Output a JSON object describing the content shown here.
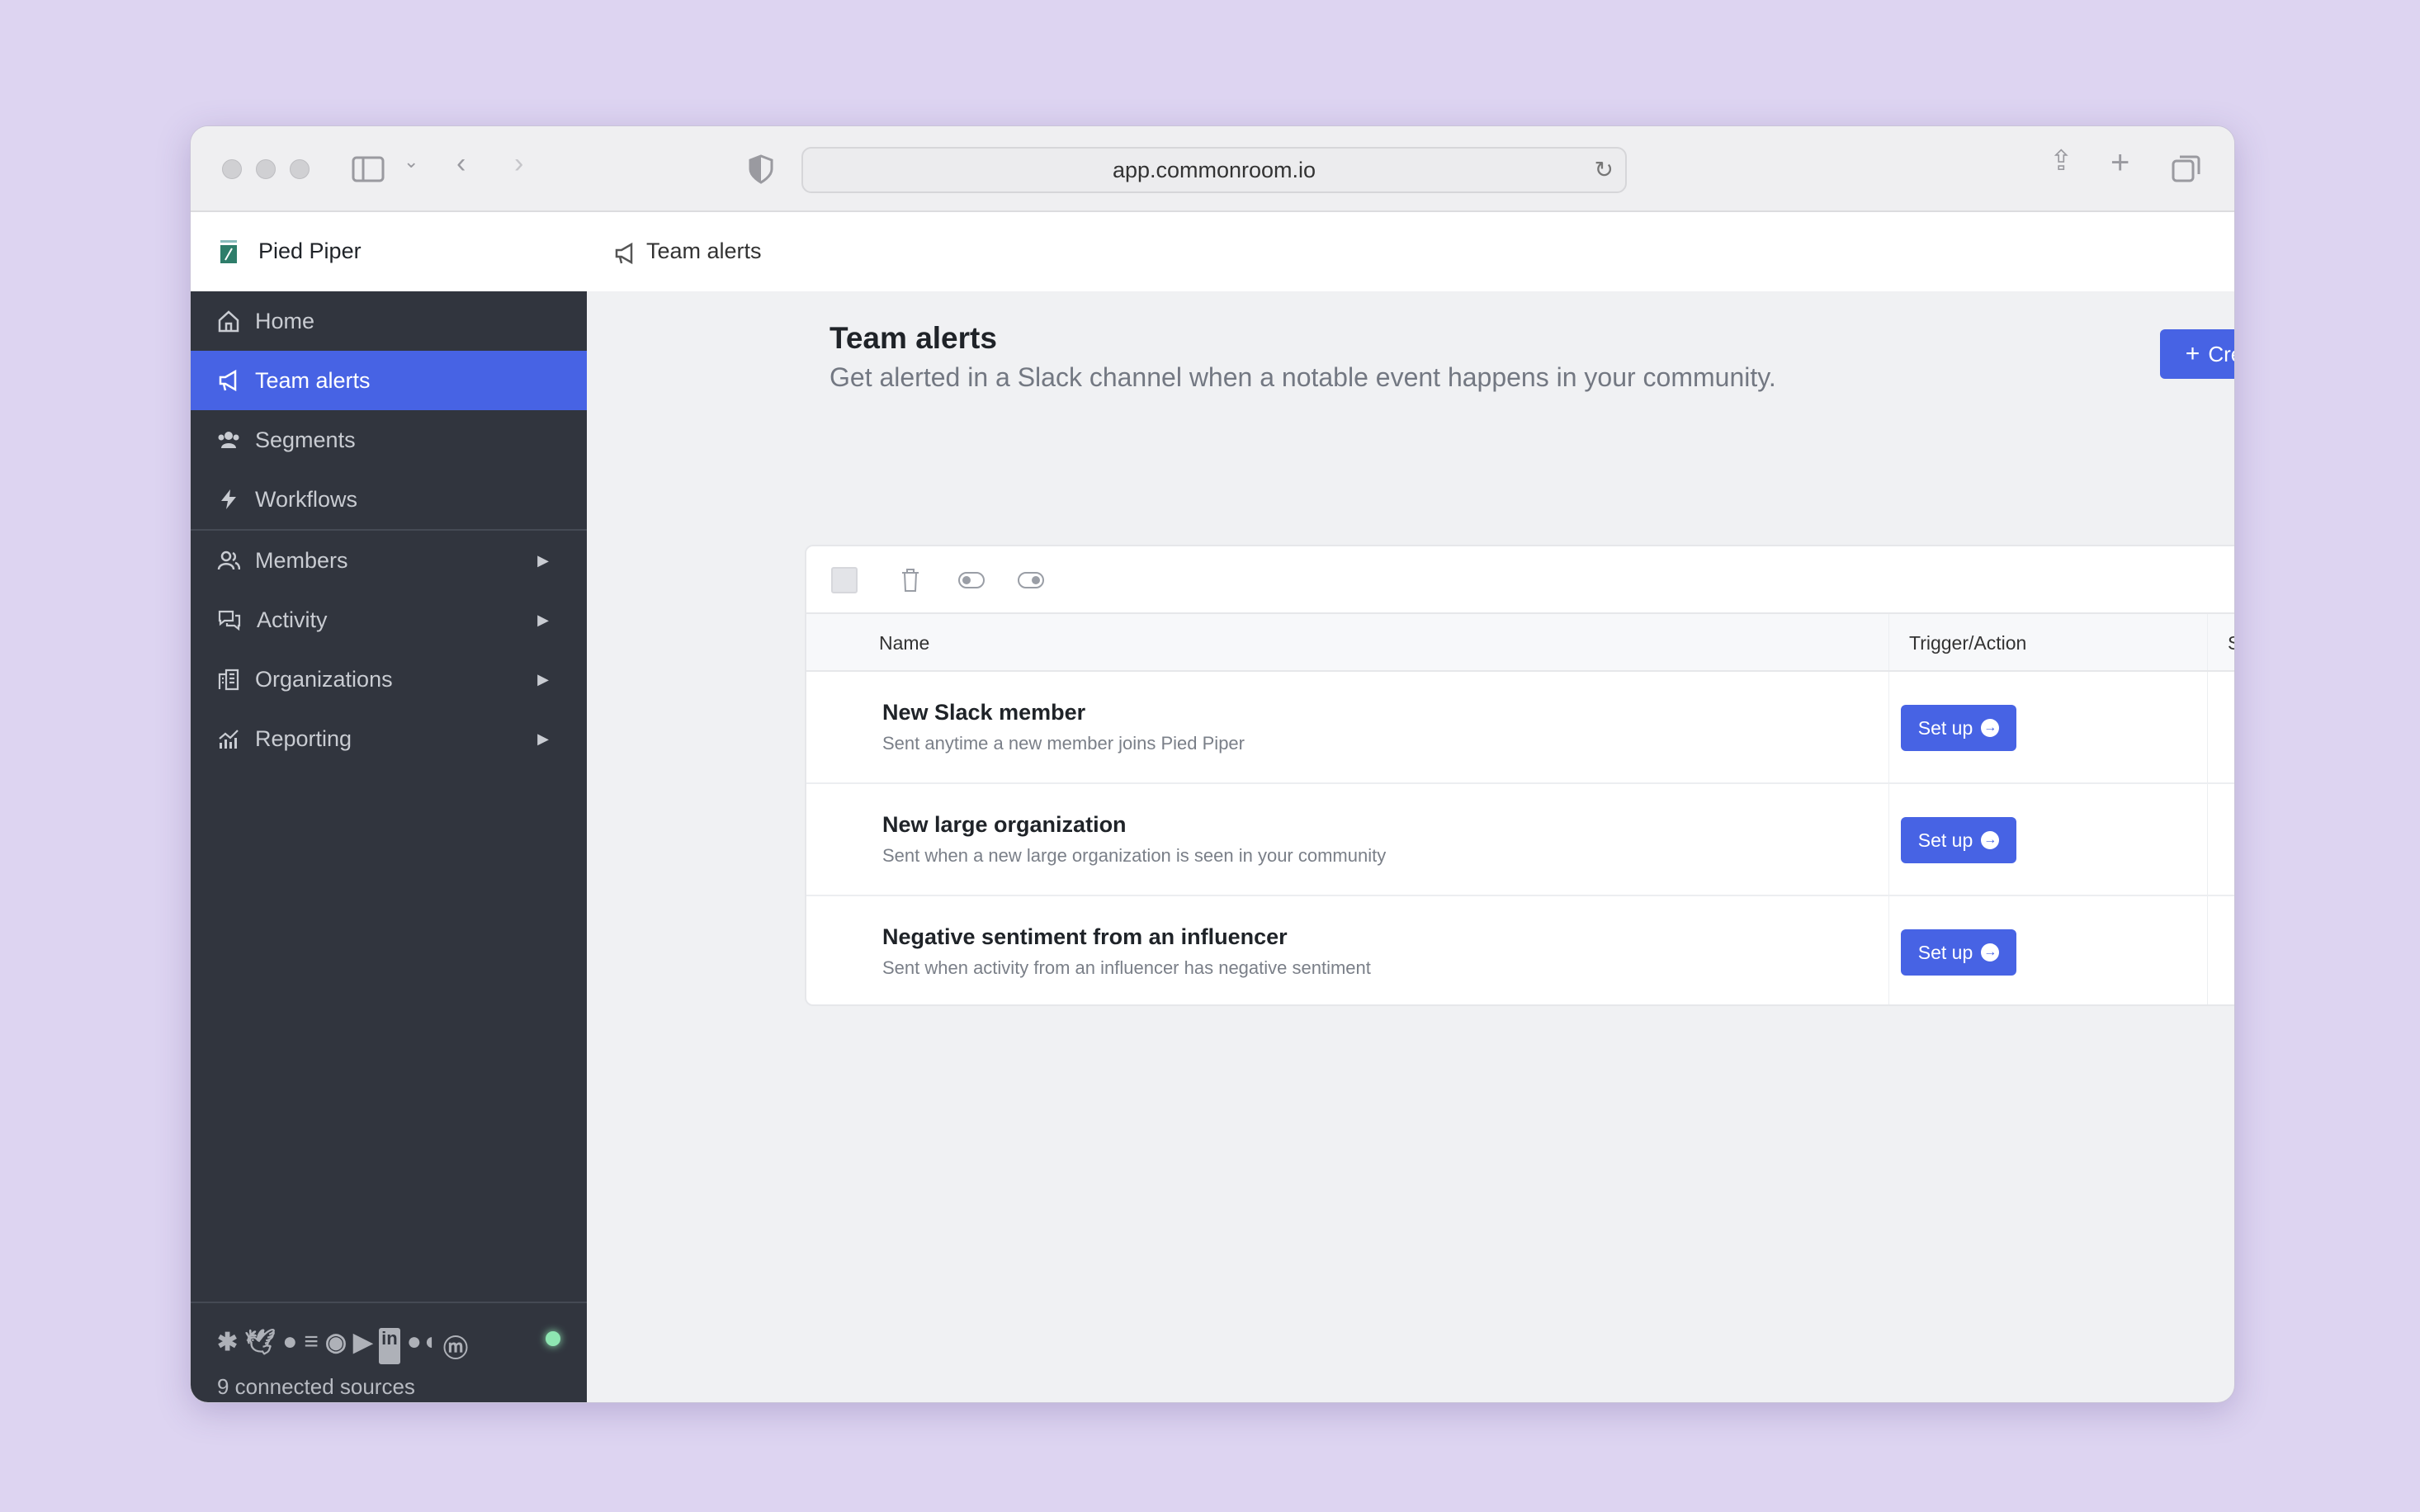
{
  "browser": {
    "url": "app.commonroom.io"
  },
  "app": {
    "workspace": "Pied Piper",
    "breadcrumb": "Team alerts"
  },
  "sidebar": {
    "items": [
      {
        "label": "Home",
        "icon": "home-icon"
      },
      {
        "label": "Team alerts",
        "icon": "megaphone-icon",
        "active": true
      },
      {
        "label": "Segments",
        "icon": "users-icon"
      },
      {
        "label": "Workflows",
        "icon": "lightning-icon"
      },
      {
        "label": "Members",
        "icon": "member-icon",
        "expandable": true
      },
      {
        "label": "Activity",
        "icon": "chat-icon",
        "expandable": true
      },
      {
        "label": "Organizations",
        "icon": "building-icon",
        "expandable": true
      },
      {
        "label": "Reporting",
        "icon": "chart-icon",
        "expandable": true
      }
    ],
    "sources": {
      "label": "9 connected sources",
      "icons": [
        "slack",
        "twitter",
        "github",
        "stackoverflow",
        "reddit",
        "youtube",
        "linkedin",
        "medium",
        "meetup"
      ],
      "status_color": "#8ee6b2"
    },
    "footer_icons": [
      "gear-icon",
      "help-icon",
      "windows-icon",
      "power-icon"
    ]
  },
  "page": {
    "title": "Team alerts",
    "subtitle": "Get alerted in a Slack channel when a notable event happens in your community.",
    "create_button": "Create team alert"
  },
  "table": {
    "columns": [
      "Name",
      "Trigger/Action",
      "Status"
    ],
    "rows": [
      {
        "title": "New Slack member",
        "description": "Sent anytime a new member joins Pied Piper",
        "action": "Set up"
      },
      {
        "title": "New large organization",
        "description": "Sent when a new large organization is seen in your community",
        "action": "Set up"
      },
      {
        "title": "Negative sentiment from an influencer",
        "description": "Sent when activity from an influencer has negative sentiment",
        "action": "Set up"
      }
    ]
  },
  "colors": {
    "accent": "#4763e4",
    "sidebar": "#31353e",
    "background": "#ddd4f1"
  }
}
